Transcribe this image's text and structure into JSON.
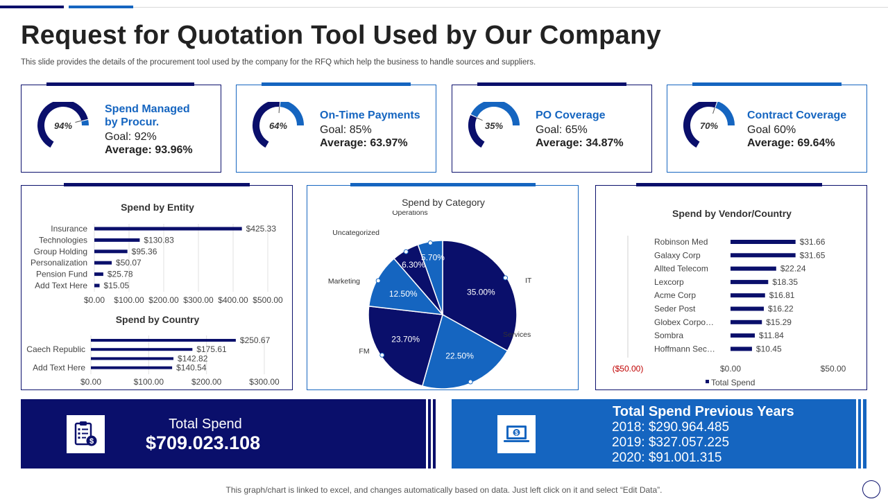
{
  "page": {
    "title": "Request for Quotation Tool Used by Our Company",
    "subtitle": "This slide provides the details of the procurement tool used by the company for the RFQ which help the business to handle sources and suppliers.",
    "footer": "This graph/chart is linked to excel, and changes automatically based on data. Just left click on it and select “Edit Data”."
  },
  "colors": {
    "navy": "#0a0f6b",
    "blue": "#1565c0",
    "gauge_track": "#ffffff"
  },
  "kpis": [
    {
      "title_line1": "Spend Managed",
      "title_line2": "by Procur.",
      "goal": "Goal: 92%",
      "average": "Average: 93.96%",
      "gauge_label": "94%",
      "value": 0.94
    },
    {
      "title_line1": "On-Time Payments",
      "title_line2": "",
      "goal": "Goal: 85%",
      "average": "Average: 63.97%",
      "gauge_label": "64%",
      "value": 0.64
    },
    {
      "title_line1": "PO Coverage",
      "title_line2": "",
      "goal": "Goal: 65%",
      "average": "Average: 34.87%",
      "gauge_label": "35%",
      "value": 0.35
    },
    {
      "title_line1": "Contract Coverage",
      "title_line2": "",
      "goal": "Goal 60%",
      "average": "Average: 69.64%",
      "gauge_label": "70%",
      "value": 0.7
    }
  ],
  "chart_data": [
    {
      "type": "bar",
      "orientation": "horizontal",
      "title": "Spend by Entity",
      "categories": [
        "Insurance",
        "Technologies",
        "Group Holding",
        "Personalization",
        "Pension Fund",
        "Add Text Here"
      ],
      "values": [
        425.33,
        130.83,
        95.36,
        50.07,
        25.78,
        15.05
      ],
      "value_labels": [
        "$425.33",
        "$130.83",
        "$95.36",
        "$50.07",
        "$25.78",
        "$15.05"
      ],
      "xlim": [
        0,
        500
      ],
      "ticks": [
        "$0.00",
        "$100.00",
        "$200.00",
        "$300.00",
        "$400.00",
        "$500.00"
      ],
      "grid": true
    },
    {
      "type": "bar",
      "orientation": "horizontal",
      "title": "Spend by Country",
      "categories": [
        "",
        "Caech Republic",
        "",
        "Add Text Here"
      ],
      "values": [
        250.67,
        175.61,
        142.82,
        140.54
      ],
      "value_labels": [
        "$250.67",
        "$175.61",
        "$142.82",
        "$140.54"
      ],
      "xlim": [
        0,
        300
      ],
      "ticks": [
        "$0.00",
        "$100.00",
        "$200.00",
        "$300.00"
      ],
      "grid": true
    },
    {
      "type": "pie",
      "title": "Spend by Category",
      "categories": [
        "IT",
        "Services",
        "FM",
        "Marketing",
        "Uncategorized",
        "Operations"
      ],
      "values": [
        35.0,
        22.5,
        23.7,
        12.5,
        6.3,
        5.7
      ],
      "value_labels": [
        "35.00%",
        "22.50%",
        "23.70%",
        "12.50%",
        "6.30%",
        "5.70%"
      ],
      "colors": [
        "#0a0f6b",
        "#1565c0",
        "#0a0f6b",
        "#1565c0",
        "#0a0f6b",
        "#1565c0"
      ]
    },
    {
      "type": "bar",
      "orientation": "horizontal",
      "title": "Spend by Vendor/Country",
      "categories": [
        "Robinson Med",
        "Galaxy Corp",
        "Allted Telecom",
        "Lexcorp",
        "Acme Corp",
        "Seder Post",
        "Globex Corpo…",
        "Sombra",
        "Hoffmann Sec…"
      ],
      "values": [
        31.66,
        31.65,
        22.24,
        18.35,
        16.81,
        16.22,
        15.29,
        11.84,
        10.45
      ],
      "value_labels": [
        "$31.66",
        "$31.65",
        "$22.24",
        "$18.35",
        "$16.81",
        "$16.22",
        "$15.29",
        "$11.84",
        "$10.45"
      ],
      "xlim": [
        -50,
        50
      ],
      "ticks": [
        "($50.00)",
        "$0.00",
        "$50.00"
      ],
      "legend": "Total Spend",
      "legend_position": "bottom"
    }
  ],
  "total_spend": {
    "label": "Total Spend",
    "value": "$709.023.108",
    "icon": "clipboard-dollar-icon"
  },
  "previous_years": {
    "title": "Total Spend Previous Years",
    "lines": [
      "2018: $290.964.485",
      "2019: $327.057.225",
      "2020: $91.001.315"
    ],
    "icon": "laptop-dollar-icon"
  }
}
